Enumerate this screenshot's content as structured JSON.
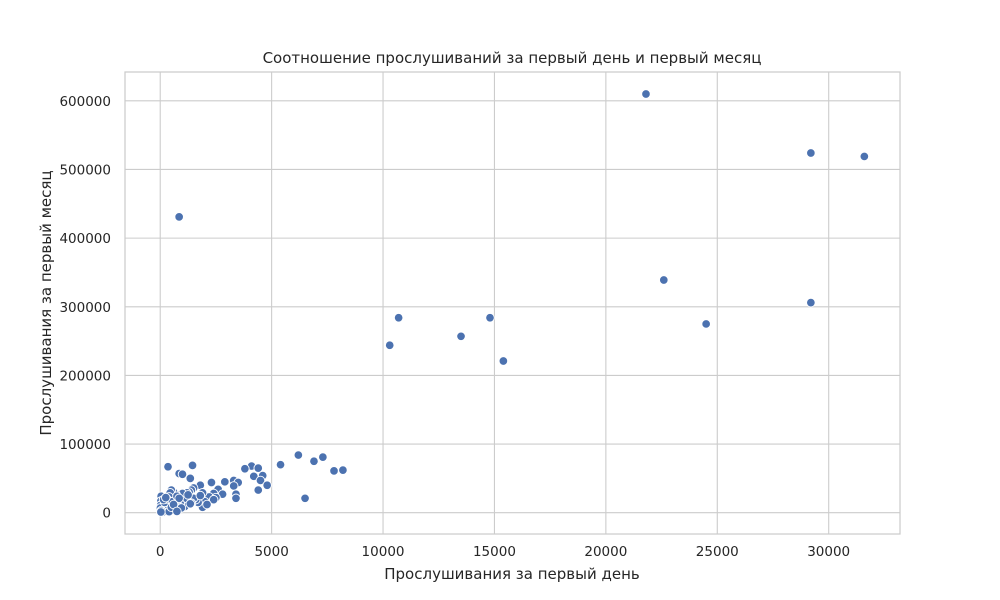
{
  "chart_data": {
    "type": "scatter",
    "title": "Соотношение прослушиваний за первый день и первый месяц",
    "xlabel": "Прослушивания за первый день",
    "ylabel": "Прослушивания за первый месяц",
    "xlim": [
      -1580,
      33200
    ],
    "ylim": [
      -31000,
      642000
    ],
    "xticks": [
      0,
      5000,
      10000,
      15000,
      20000,
      25000,
      30000
    ],
    "xtick_labels": [
      "0",
      "5000",
      "10000",
      "15000",
      "20000",
      "25000",
      "30000"
    ],
    "yticks": [
      0,
      100000,
      200000,
      300000,
      400000,
      500000,
      600000
    ],
    "ytick_labels": [
      "0",
      "100000",
      "200000",
      "300000",
      "400000",
      "500000",
      "600000"
    ],
    "grid": true,
    "point_color": "#4c72b0",
    "series": [
      {
        "points": [
          [
            21800,
            610000
          ],
          [
            29200,
            524000
          ],
          [
            31600,
            519000
          ],
          [
            850,
            431000
          ],
          [
            22600,
            339000
          ],
          [
            29200,
            306000
          ],
          [
            10700,
            284000
          ],
          [
            14800,
            284000
          ],
          [
            24500,
            275000
          ],
          [
            13500,
            257000
          ],
          [
            10300,
            244000
          ],
          [
            15400,
            221000
          ],
          [
            6200,
            84000
          ],
          [
            7300,
            81000
          ],
          [
            6900,
            75000
          ],
          [
            8200,
            62000
          ],
          [
            7800,
            61000
          ],
          [
            5400,
            70000
          ],
          [
            6500,
            21000
          ],
          [
            4100,
            68000
          ],
          [
            4400,
            65000
          ],
          [
            3800,
            64000
          ],
          [
            4200,
            53000
          ],
          [
            4600,
            54000
          ],
          [
            4500,
            47000
          ],
          [
            4800,
            40000
          ],
          [
            4400,
            33000
          ],
          [
            1450,
            69000
          ],
          [
            350,
            67000
          ],
          [
            850,
            57000
          ],
          [
            1000,
            56000
          ],
          [
            1350,
            50000
          ],
          [
            3300,
            47000
          ],
          [
            3500,
            44000
          ],
          [
            2300,
            44000
          ],
          [
            2900,
            45000
          ],
          [
            1800,
            40000
          ],
          [
            3300,
            39000
          ],
          [
            3400,
            27000
          ],
          [
            3400,
            21000
          ],
          [
            2600,
            34000
          ],
          [
            2400,
            28000
          ],
          [
            2800,
            27000
          ],
          [
            2200,
            23000
          ],
          [
            2500,
            22000
          ],
          [
            2400,
            19000
          ],
          [
            2000,
            16000
          ],
          [
            1900,
            8000
          ],
          [
            1500,
            36000
          ],
          [
            1400,
            33000
          ],
          [
            1300,
            30000
          ],
          [
            1200,
            29000
          ],
          [
            1000,
            28000
          ],
          [
            1900,
            29000
          ],
          [
            1700,
            15000
          ],
          [
            1600,
            19000
          ],
          [
            1500,
            21000
          ],
          [
            1400,
            14000
          ],
          [
            1100,
            18000
          ],
          [
            1100,
            9000
          ],
          [
            900,
            13000
          ],
          [
            800,
            19000
          ],
          [
            700,
            27000
          ],
          [
            600,
            30000
          ],
          [
            500,
            33000
          ],
          [
            450,
            29000
          ],
          [
            400,
            23000
          ],
          [
            350,
            18000
          ],
          [
            300,
            12000
          ],
          [
            250,
            9000
          ],
          [
            200,
            6000
          ],
          [
            150,
            4000
          ],
          [
            100,
            2000
          ],
          [
            80,
            14000
          ],
          [
            60,
            21000
          ],
          [
            40,
            24000
          ],
          [
            30,
            17000
          ],
          [
            20,
            11000
          ],
          [
            10,
            7000
          ],
          [
            50,
            3000
          ],
          [
            120,
            1000
          ],
          [
            200,
            15000
          ],
          [
            300,
            20000
          ],
          [
            550,
            16000
          ],
          [
            650,
            10000
          ],
          [
            700,
            5000
          ],
          [
            750,
            24000
          ],
          [
            850,
            21000
          ],
          [
            950,
            7000
          ],
          [
            400,
            1500
          ],
          [
            500,
            8000
          ],
          [
            600,
            12000
          ],
          [
            150,
            19000
          ],
          [
            250,
            22000
          ],
          [
            1250,
            26000
          ],
          [
            1350,
            13000
          ],
          [
            1800,
            25000
          ],
          [
            2100,
            12000
          ],
          [
            750,
            2000
          ],
          [
            30,
            1000
          ]
        ]
      }
    ]
  }
}
